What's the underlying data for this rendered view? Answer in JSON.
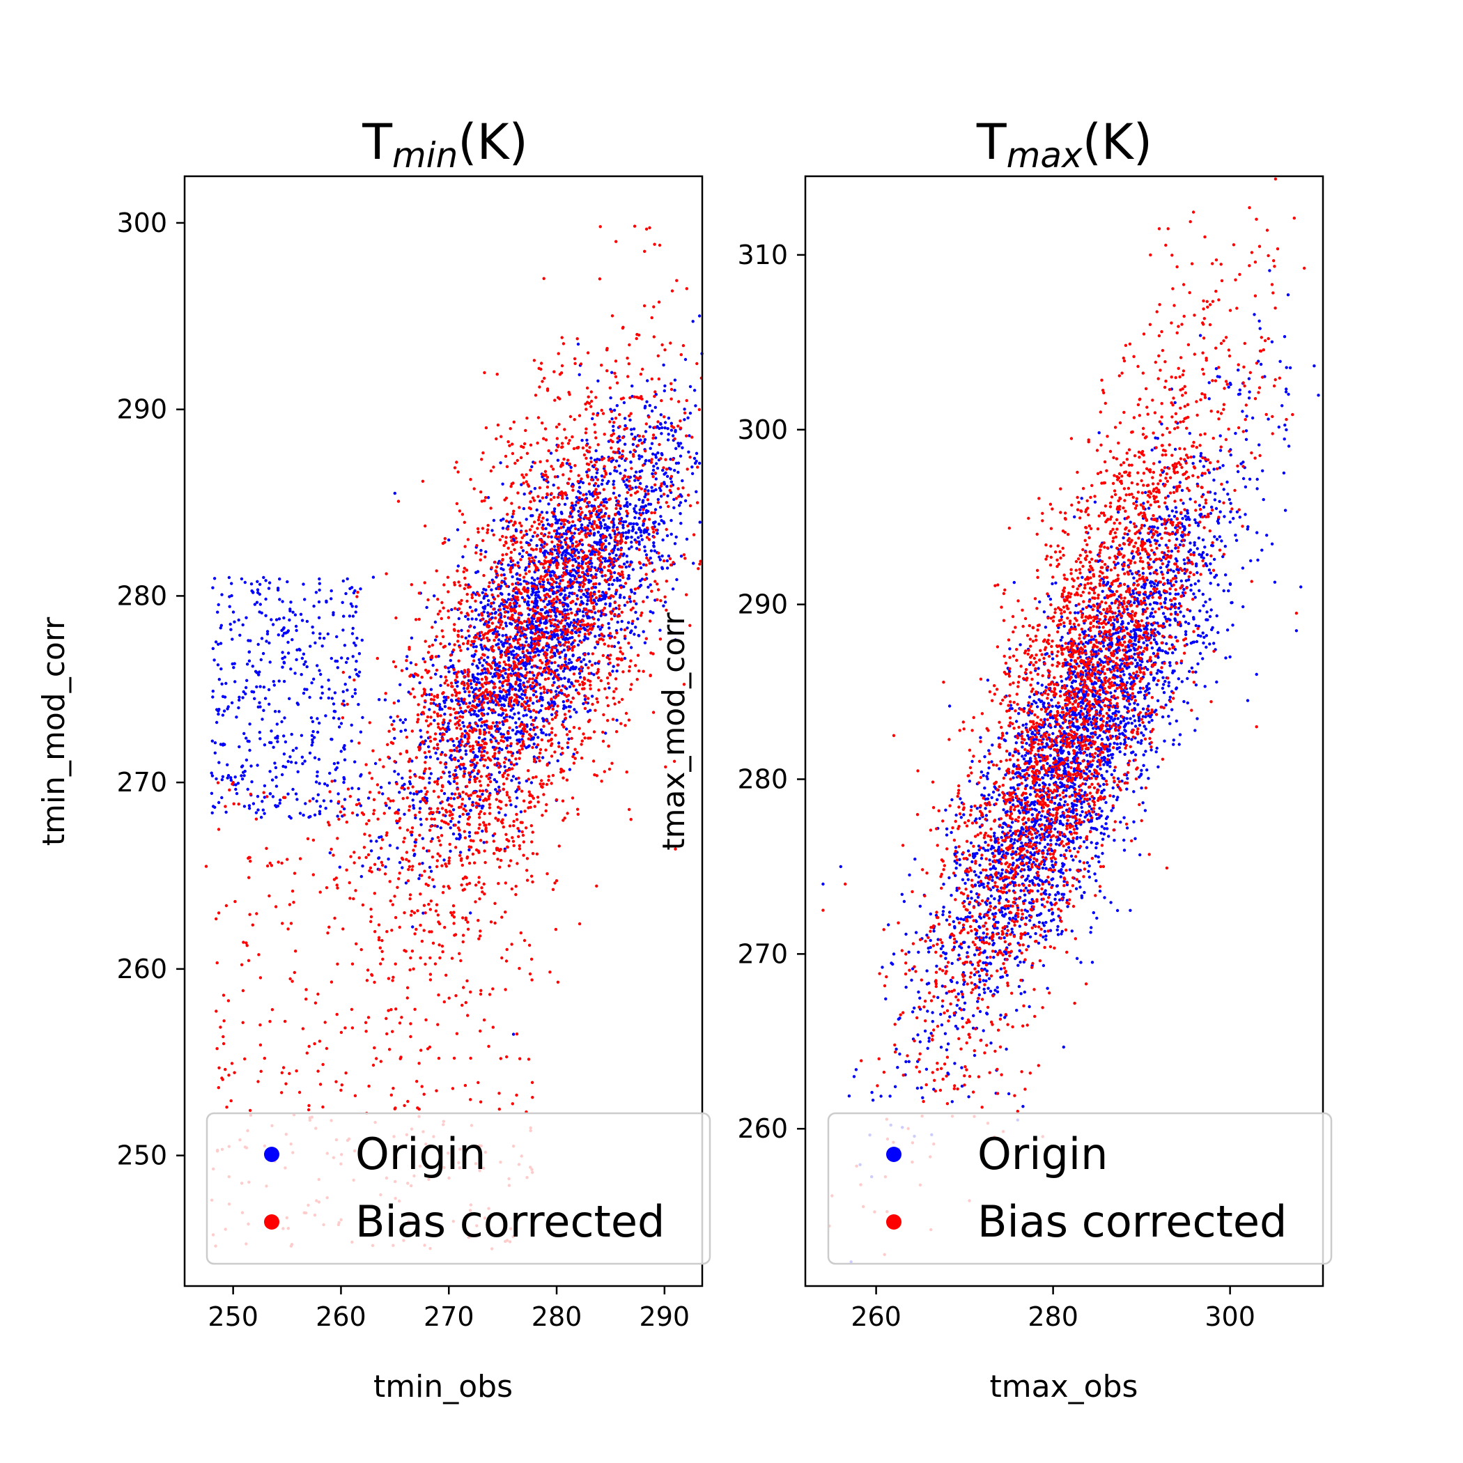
{
  "chart_data": [
    {
      "type": "scatter",
      "title": {
        "main": "T",
        "sub": "min",
        "suffix": "(K)"
      },
      "xlabel": "tmin_obs",
      "ylabel": "tmin_mod_corr",
      "xlim": [
        245.5,
        293.5
      ],
      "ylim": [
        243.0,
        302.5
      ],
      "xticks": [
        250,
        260,
        270,
        280,
        290
      ],
      "xtick_labels": [
        "250",
        "260",
        "270",
        "280",
        "290"
      ],
      "yticks": [
        250,
        260,
        270,
        280,
        290,
        300
      ],
      "ytick_labels": [
        "250",
        "260",
        "270",
        "280",
        "290",
        "300"
      ],
      "grid": false,
      "legend": {
        "position": "lower-center",
        "entries": [
          "Origin",
          "Bias corrected"
        ]
      },
      "series": [
        {
          "name": "Origin",
          "color": "#0000ff",
          "approx_points": 3000,
          "distribution": {
            "main_cluster": {
              "x_mean": 279.5,
              "y_mean": 279.0,
              "x_sd": 6.5,
              "y_sd": 5.5,
              "r": 0.78
            },
            "tail": {
              "x_range": [
                248,
                262
              ],
              "y_range": [
                268,
                281
              ]
            }
          },
          "sample_points": [
            [
              250.5,
              274.0
            ],
            [
              251.5,
              277.0
            ],
            [
              253.0,
              274.5
            ],
            [
              258.0,
              276.0
            ],
            [
              263.0,
              281.0
            ],
            [
              265.0,
              285.5
            ],
            [
              270.0,
              283.0
            ],
            [
              275.0,
              286.0
            ],
            [
              282.0,
              293.5
            ],
            [
              285.0,
              290.0
            ],
            [
              290.0,
              286.0
            ],
            [
              291.5,
              285.0
            ],
            [
              272.0,
              263.0
            ],
            [
              276.0,
              256.5
            ],
            [
              248.0,
              270.5
            ]
          ]
        },
        {
          "name": "Bias corrected",
          "color": "#ff0000",
          "approx_points": 3000,
          "distribution": {
            "main_cluster": {
              "x_mean": 277.5,
              "y_mean": 277.5,
              "x_sd": 7.0,
              "y_sd": 7.5,
              "r": 0.65
            },
            "tail": {
              "x_range": [
                248,
                278
              ],
              "y_range": [
                245,
                270
              ]
            }
          },
          "sample_points": [
            [
              247.5,
              265.5
            ],
            [
              250.0,
              270.0
            ],
            [
              252.5,
              257.0
            ],
            [
              260.0,
              253.5
            ],
            [
              265.0,
              252.5
            ],
            [
              272.0,
              253.0
            ],
            [
              274.0,
              245.0
            ],
            [
              276.0,
              250.5
            ],
            [
              285.5,
              299.0
            ],
            [
              284.0,
              297.0
            ],
            [
              289.0,
              295.5
            ],
            [
              291.5,
              289.0
            ],
            [
              275.0,
              268.0
            ],
            [
              280.0,
              281.0
            ]
          ]
        }
      ]
    },
    {
      "type": "scatter",
      "title": {
        "main": "T",
        "sub": "max",
        "suffix": "(K)"
      },
      "xlabel": "tmax_obs",
      "ylabel": "tmax_mod_corr",
      "xlim": [
        252.0,
        310.5
      ],
      "ylim": [
        251.0,
        314.5
      ],
      "xticks": [
        260,
        280,
        300
      ],
      "xtick_labels": [
        "260",
        "280",
        "300"
      ],
      "yticks": [
        260,
        270,
        280,
        290,
        300,
        310
      ],
      "ytick_labels": [
        "260",
        "270",
        "280",
        "290",
        "300",
        "310"
      ],
      "grid": false,
      "legend": {
        "position": "lower-center",
        "entries": [
          "Origin",
          "Bias corrected"
        ]
      },
      "series": [
        {
          "name": "Origin",
          "color": "#0000ff",
          "approx_points": 3000,
          "distribution": {
            "main_cluster": {
              "x_mean": 283.0,
              "y_mean": 282.0,
              "x_sd": 8.5,
              "y_sd": 8.0,
              "r": 0.85
            }
          },
          "sample_points": [
            [
              254.0,
              274.0
            ],
            [
              256.0,
              275.0
            ],
            [
              262.0,
              270.0
            ],
            [
              275.0,
              262.0
            ],
            [
              276.0,
              260.5
            ],
            [
              300.0,
              287.0
            ],
            [
              302.0,
              284.5
            ],
            [
              303.0,
              286.0
            ],
            [
              308.0,
              291.0
            ],
            [
              307.5,
              288.5
            ],
            [
              285.0,
              289.0
            ],
            [
              294.0,
              292.0
            ]
          ]
        },
        {
          "name": "Bias corrected",
          "color": "#ff0000",
          "approx_points": 3000,
          "distribution": {
            "main_cluster": {
              "x_mean": 283.0,
              "y_mean": 285.0,
              "x_sd": 8.5,
              "y_sd": 10.0,
              "r": 0.82
            }
          },
          "sample_points": [
            [
              254.0,
              272.5
            ],
            [
              256.5,
              274.0
            ],
            [
              262.0,
              282.5
            ],
            [
              292.0,
              311.5
            ],
            [
              293.0,
              311.5
            ],
            [
              291.0,
              310.0
            ],
            [
              298.0,
              309.5
            ],
            [
              303.5,
              304.5
            ],
            [
              305.0,
              302.5
            ],
            [
              307.5,
              289.5
            ],
            [
              303.0,
              283.0
            ],
            [
              276.0,
              261.0
            ]
          ]
        }
      ]
    }
  ]
}
